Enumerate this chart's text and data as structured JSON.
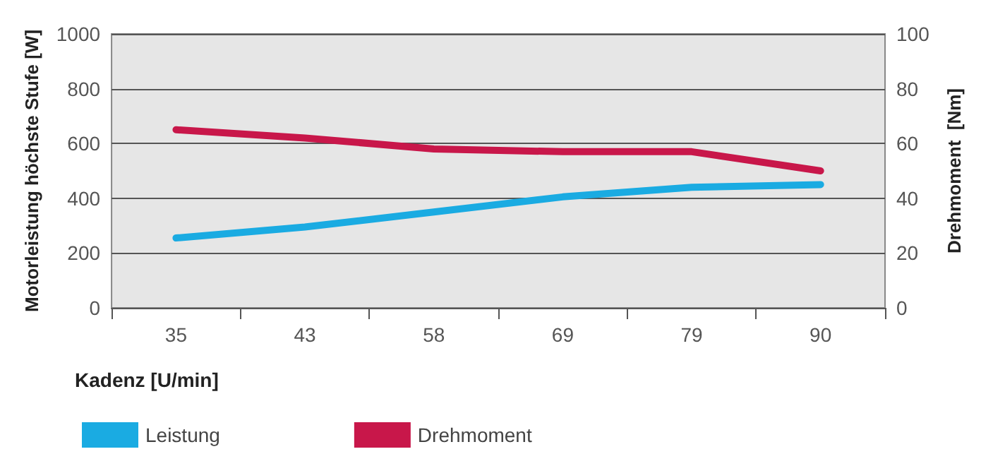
{
  "chart_data": {
    "type": "line",
    "xlabel": "Kadenz [U/min]",
    "ylabel": "Motorleistung höchste Stufe [W]",
    "y2label": "Drehmoment  [Nm]",
    "categories": [
      "35",
      "43",
      "58",
      "69",
      "79",
      "90"
    ],
    "series": [
      {
        "name": "Leistung",
        "color": "#1aabe2",
        "values": [
          255,
          295,
          350,
          405,
          440,
          450
        ]
      },
      {
        "name": "Drehmoment",
        "color": "#c8174a",
        "axis": "y2",
        "values": [
          65,
          62,
          58,
          57,
          57,
          50
        ]
      }
    ],
    "ylim": [
      0,
      1000
    ],
    "yticks": [
      0,
      200,
      400,
      600,
      800,
      1000
    ],
    "y2lim": [
      0,
      100
    ],
    "y2ticks": [
      0,
      20,
      40,
      60,
      80,
      100
    ],
    "grid": "y",
    "legend": "bottom left",
    "marker": "none",
    "line_style": "solid"
  }
}
